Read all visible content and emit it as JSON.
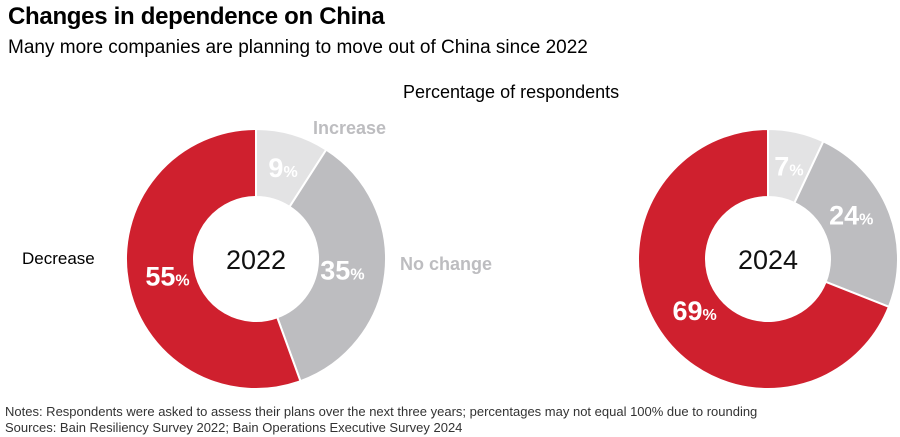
{
  "chart_data": {
    "type": "pie",
    "title": "Changes in dependence on China",
    "subtitle": "Many more companies are planning to move out of China since 2022",
    "measure_label": "Percentage of respondents",
    "categories": [
      "Increase",
      "No change",
      "Decrease"
    ],
    "colors": {
      "Increase": "#e3e3e4",
      "No change": "#bdbdc0",
      "Decrease": "#cf202e"
    },
    "label_colors": {
      "Increase": "#bdbdc0",
      "No change": "#bdbdc0",
      "Decrease": "#000000"
    },
    "charts": [
      {
        "year": "2022",
        "values": [
          9,
          35,
          55
        ]
      },
      {
        "year": "2024",
        "values": [
          7,
          24,
          69
        ]
      }
    ],
    "unit": "%",
    "notes": "Notes: Respondents were asked to assess their plans over the next three years; percentages may not equal 100% due to rounding",
    "sources": "Sources: Bain Resiliency Survey 2022; Bain Operations Executive Survey 2024"
  }
}
